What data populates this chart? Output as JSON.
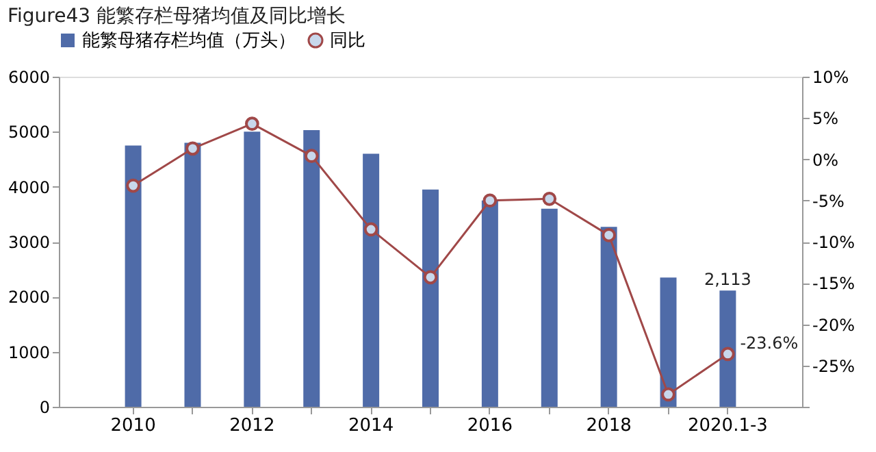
{
  "chart_data": {
    "type": "bar",
    "title": "Figure43 能繁存栏母猪均值及同比增长",
    "categories": [
      "2010",
      null,
      "2012",
      null,
      "2014",
      null,
      "2016",
      null,
      "2018",
      null,
      "2020.1-3"
    ],
    "series": [
      {
        "name": "能繁母猪存栏均值（万头）",
        "color": "#4f6ba8",
        "values": [
          4750,
          4800,
          5000,
          5030,
          4600,
          3950,
          3750,
          3600,
          3270,
          2350,
          2113
        ],
        "value_labels": [
          null,
          null,
          null,
          null,
          null,
          null,
          null,
          null,
          null,
          null,
          "2,113"
        ]
      },
      {
        "name": "同比",
        "type": "line",
        "axis": "y2",
        "color": "#a04848",
        "marker": "circle",
        "values": [
          -3.2,
          1.3,
          4.3,
          0.4,
          -8.5,
          -14.3,
          -5.0,
          -4.8,
          -9.2,
          -28.5,
          -23.6
        ],
        "value_labels": [
          null,
          null,
          null,
          null,
          null,
          null,
          null,
          null,
          null,
          null,
          "-23.6%"
        ]
      }
    ],
    "ylim": [
      0,
      6000
    ],
    "yticks": [
      0,
      1000,
      2000,
      3000,
      4000,
      5000,
      6000
    ],
    "y2lim": [
      -30,
      10
    ],
    "y2ticks": [
      {
        "value": -30,
        "label": null
      },
      {
        "value": -25,
        "label": "-25%"
      },
      {
        "value": -20,
        "label": "-20%"
      },
      {
        "value": -15,
        "label": "-15%"
      },
      {
        "value": -10,
        "label": "-10%"
      },
      {
        "value": -5,
        "label": "-5%"
      },
      {
        "value": 0,
        "label": "0%"
      },
      {
        "value": 5,
        "label": "5%"
      },
      {
        "value": 10,
        "label": "10%"
      }
    ],
    "grid": false,
    "legend": "top"
  }
}
